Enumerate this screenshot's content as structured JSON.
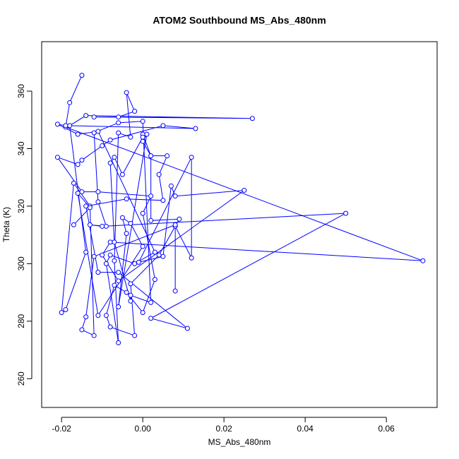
{
  "chart_data": {
    "type": "line",
    "title": "ATOM2 Southbound MS_Abs_480nm",
    "x_label": "MS_Abs_480nm",
    "y_label": "Theta (K)",
    "color": "#0000ff",
    "marker": "open-circle",
    "x": [
      -0.015,
      -0.018,
      -0.019,
      0.069,
      -0.008,
      -0.01,
      -0.006,
      0.025,
      0.008,
      0.007,
      0.005,
      -0.001,
      0.012,
      0.012,
      0.008,
      0.008,
      0.008,
      -0.012,
      -0.014,
      -0.015,
      -0.012,
      -0.013,
      -0.017,
      -0.02,
      -0.019,
      -0.014,
      -0.018,
      -0.014,
      0.027,
      -0.012,
      -0.006,
      -0.002,
      -0.004,
      -0.003,
      -0.006,
      -0.007,
      -0.006,
      -0.009,
      -0.008,
      -0.002,
      0.003,
      -0.011,
      -0.016,
      -0.021,
      -0.019,
      0.013,
      0.005,
      -0.008,
      -0.01,
      -0.015,
      -0.016,
      -0.021,
      -0.015,
      -0.011,
      0.002,
      0.0,
      0.003,
      0.0,
      -0.004,
      -0.007,
      -0.009,
      -0.008,
      -0.002,
      -0.003,
      0.004,
      0.009,
      0.002,
      0.002,
      0.0,
      0.0,
      -0.005,
      -0.007,
      -0.008,
      -0.007,
      -0.003,
      -0.003,
      0.002,
      0.0,
      -0.006,
      -0.012,
      -0.011,
      -0.009,
      -0.013,
      -0.01,
      0.05,
      0.002,
      0.011,
      -0.006,
      -0.011,
      -0.014,
      -0.004,
      0.005,
      0.004,
      0.006,
      0.002,
      0.0,
      0.001,
      -0.006,
      -0.004,
      -0.005,
      -0.003,
      0.0,
      -0.011,
      -0.016,
      -0.013,
      -0.017
    ],
    "values": [
      365.5,
      356,
      347.5,
      301,
      307.5,
      303,
      294,
      325.5,
      323.5,
      327,
      302.5,
      300.5,
      337,
      302,
      313,
      290.5,
      313.5,
      302.5,
      281.5,
      277,
      275,
      320,
      328,
      283,
      284,
      304,
      348,
      351.5,
      350.5,
      351,
      351,
      353,
      359.5,
      344,
      345.5,
      301,
      272.5,
      300,
      303,
      300,
      304,
      346,
      345,
      348.5,
      348,
      347,
      348,
      343,
      341,
      336,
      334.5,
      337,
      325,
      325,
      323.5,
      317.5,
      294.5,
      283,
      290,
      292.5,
      282,
      278,
      275,
      293,
      303,
      315.5,
      315,
      337.5,
      345,
      344,
      331,
      337,
      335,
      307.5,
      287,
      289,
      286.5,
      349.5,
      349,
      345.5,
      321.5,
      313,
      313.5,
      313,
      317.5,
      281,
      277.5,
      297,
      297,
      320,
      322.5,
      322,
      331,
      337.5,
      337.5,
      342.5,
      345,
      285,
      310.5,
      316,
      314,
      306,
      282,
      324.5,
      319.5,
      313.5
    ],
    "xlim": [
      -0.0249,
      0.0725
    ],
    "ylim": [
      250,
      377.2
    ],
    "xticks": [
      -0.02,
      {
        "value": 0,
        "label": "0.00"
      },
      0.02,
      0.04,
      0.06
    ],
    "yticks": [
      260,
      280,
      300,
      320,
      340,
      360
    ],
    "grid": false
  }
}
